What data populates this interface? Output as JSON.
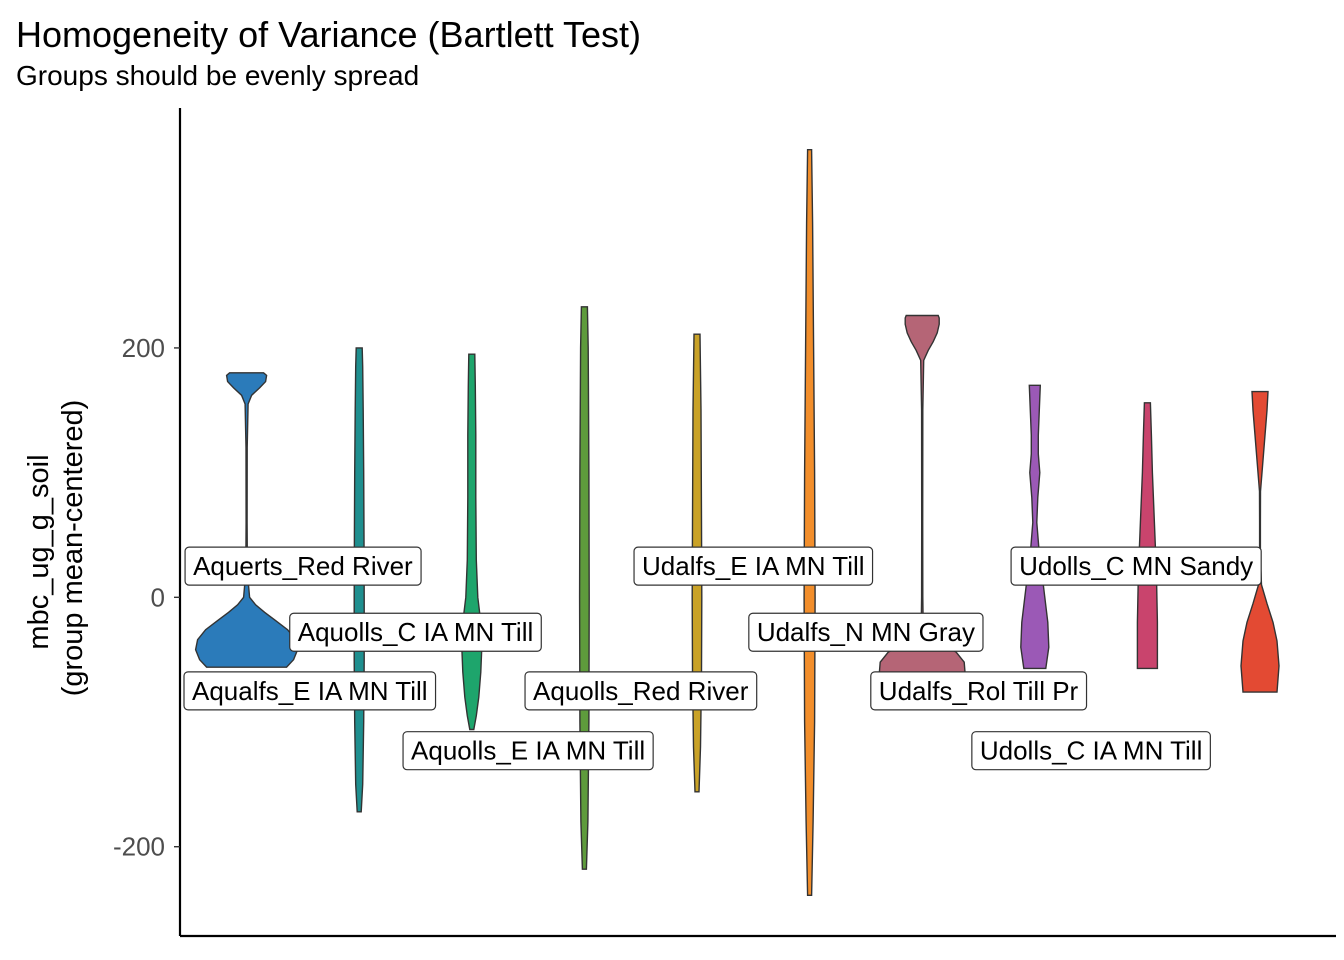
{
  "chart_data": {
    "type": "violin",
    "title": "Homogeneity of Variance (Bartlett Test)",
    "subtitle": "Groups should be evenly spread",
    "xlabel": "",
    "ylabel_lines": [
      "mbc_ug_g_soil",
      "(group mean-centered)"
    ],
    "ylim": [
      -270,
      390
    ],
    "yticks": [
      -200,
      0,
      200
    ],
    "x_axis_ticks_visible": false,
    "grid": false,
    "groups": [
      {
        "name": "Aqualfs_E IA MN Till",
        "color": "#2b7bba",
        "ymin": -56,
        "ymax": 180,
        "density": [
          [
            -56,
            40
          ],
          [
            -50,
            47
          ],
          [
            -42,
            51
          ],
          [
            -34,
            49
          ],
          [
            -26,
            41
          ],
          [
            -18,
            28
          ],
          [
            -12,
            18
          ],
          [
            -6,
            9
          ],
          [
            0,
            3
          ],
          [
            20,
            0.8
          ],
          [
            60,
            0.5
          ],
          [
            120,
            0.6
          ],
          [
            155,
            1.5
          ],
          [
            162,
            5
          ],
          [
            168,
            13
          ],
          [
            173,
            19
          ],
          [
            178,
            20
          ],
          [
            180,
            17
          ]
        ],
        "label_value": -75,
        "label_pos": 0.75
      },
      {
        "name": "Aquerts_Red River",
        "color": "#1f8f8f",
        "ymin": -172,
        "ymax": 200,
        "density": [
          [
            -172,
            2
          ],
          [
            -150,
            3.5
          ],
          [
            -100,
            4.5
          ],
          [
            -50,
            5
          ],
          [
            0,
            5
          ],
          [
            50,
            4.8
          ],
          [
            100,
            4.5
          ],
          [
            150,
            4
          ],
          [
            185,
            3.5
          ],
          [
            200,
            3
          ]
        ],
        "label_value": 25,
        "label_pos": 1.5
      },
      {
        "name": "Aquolls_C IA MN Till",
        "color": "#1ea56c",
        "ymin": -106,
        "ymax": 195,
        "density": [
          [
            -106,
            2
          ],
          [
            -95,
            4.5
          ],
          [
            -80,
            7
          ],
          [
            -60,
            9
          ],
          [
            -40,
            10
          ],
          [
            -20,
            9
          ],
          [
            0,
            6
          ],
          [
            30,
            4.5
          ],
          [
            80,
            4
          ],
          [
            130,
            4
          ],
          [
            170,
            3.5
          ],
          [
            195,
            3
          ]
        ],
        "label_value": -28,
        "label_pos": 2.5
      },
      {
        "name": "Aquolls_E IA MN Till",
        "color": "#5e9b3c",
        "ymin": -218,
        "ymax": 233,
        "density": [
          [
            -218,
            2
          ],
          [
            -180,
            3.5
          ],
          [
            -100,
            4.5
          ],
          [
            0,
            4.8
          ],
          [
            100,
            4.5
          ],
          [
            200,
            3.8
          ],
          [
            233,
            3
          ]
        ],
        "label_value": -123,
        "label_pos": 3.5
      },
      {
        "name": "Aquolls_Red River",
        "color": "#c9a227",
        "ymin": -156,
        "ymax": 211,
        "density": [
          [
            -156,
            2
          ],
          [
            -120,
            3.5
          ],
          [
            -60,
            4.5
          ],
          [
            0,
            4.8
          ],
          [
            60,
            4.5
          ],
          [
            150,
            4
          ],
          [
            211,
            3
          ]
        ],
        "label_value": -75,
        "label_pos": 4.5
      },
      {
        "name": "Udalfs_E IA MN Till",
        "color": "#f28e2b",
        "ymin": -239,
        "ymax": 359,
        "density": [
          [
            -239,
            2
          ],
          [
            -180,
            3.5
          ],
          [
            -100,
            5
          ],
          [
            0,
            5.5
          ],
          [
            100,
            5
          ],
          [
            200,
            4
          ],
          [
            300,
            3
          ],
          [
            359,
            2
          ]
        ],
        "label_value": 25,
        "label_pos": 5.5
      },
      {
        "name": "Udalfs_N MN Gray",
        "color": "#b56576",
        "ymin": -70,
        "ymax": 226,
        "density": [
          [
            -70,
            38
          ],
          [
            -62,
            43
          ],
          [
            -52,
            42
          ],
          [
            -44,
            34
          ],
          [
            -38,
            20
          ],
          [
            -32,
            8
          ],
          [
            -24,
            1
          ],
          [
            0,
            0.6
          ],
          [
            60,
            0.5
          ],
          [
            150,
            0.6
          ],
          [
            190,
            1.5
          ],
          [
            198,
            6
          ],
          [
            205,
            11
          ],
          [
            212,
            15
          ],
          [
            219,
            17
          ],
          [
            224,
            17
          ],
          [
            226,
            16
          ]
        ],
        "label_value": -28,
        "label_pos": 6.5
      },
      {
        "name": "Udalfs_Rol Till Pr",
        "color": "#9b59b6",
        "ymin": -57,
        "ymax": 170,
        "density": [
          [
            -57,
            11
          ],
          [
            -40,
            14
          ],
          [
            -20,
            13
          ],
          [
            0,
            10
          ],
          [
            20,
            7
          ],
          [
            40,
            4
          ],
          [
            60,
            2
          ],
          [
            80,
            3
          ],
          [
            100,
            5
          ],
          [
            115,
            3.5
          ],
          [
            130,
            3.5
          ],
          [
            150,
            4.5
          ],
          [
            170,
            5.5
          ]
        ],
        "label_value": -75,
        "label_pos": 7.5
      },
      {
        "name": "Udolls_C IA MN Till",
        "color": "#c9446d",
        "ymin": -57,
        "ymax": 156,
        "density": [
          [
            -57,
            10
          ],
          [
            -20,
            10
          ],
          [
            20,
            9
          ],
          [
            60,
            7
          ],
          [
            100,
            5
          ],
          [
            130,
            4
          ],
          [
            156,
            3
          ]
        ],
        "label_value": -123,
        "label_pos": 8.5
      },
      {
        "name": "Udolls_C MN Sandy",
        "color": "#e34a33",
        "ymin": -76,
        "ymax": 165,
        "density": [
          [
            -76,
            17
          ],
          [
            -55,
            19
          ],
          [
            -35,
            17
          ],
          [
            -20,
            13
          ],
          [
            -5,
            7
          ],
          [
            10,
            1.5
          ],
          [
            30,
            0.4
          ],
          [
            60,
            0.4
          ],
          [
            85,
            0.5
          ],
          [
            95,
            1.5
          ],
          [
            110,
            3
          ],
          [
            130,
            5
          ],
          [
            150,
            7
          ],
          [
            165,
            8
          ]
        ],
        "label_value": 25,
        "label_pos": 8.9
      }
    ]
  }
}
